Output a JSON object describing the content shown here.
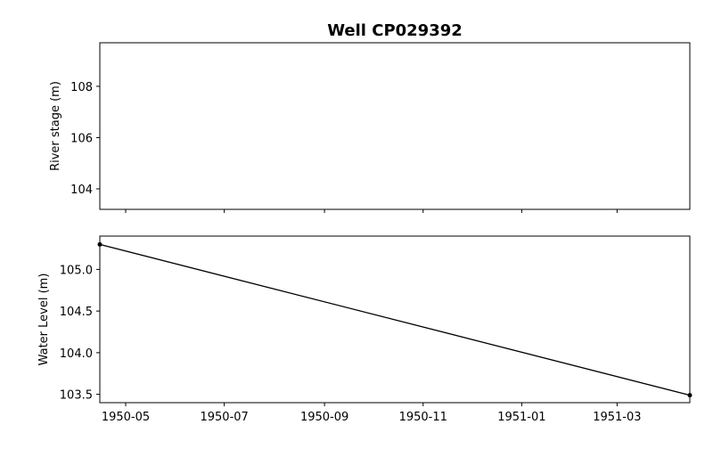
{
  "title": "Well CP029392",
  "chart_data": [
    {
      "type": "line",
      "title": "Well CP029392",
      "ylabel": "River stage (m)",
      "xlim": [
        "1950-04-15",
        "1951-04-15"
      ],
      "ylim": [
        103.2,
        109.7
      ],
      "yticks": [
        104,
        106,
        108
      ],
      "series": [
        {
          "x": [],
          "y": []
        }
      ],
      "grid": false,
      "xtick_labels_visible": false
    },
    {
      "type": "line",
      "ylabel": "Water Level (m)",
      "xlim": [
        "1950-04-15",
        "1951-04-15"
      ],
      "ylim": [
        103.4,
        105.4
      ],
      "yticks": [
        103.5,
        104.0,
        104.5,
        105.0
      ],
      "ytick_labels": [
        "103.5",
        "104.0",
        "104.5",
        "105.0"
      ],
      "xticks": [
        "1950-05-01",
        "1950-07-01",
        "1950-09-01",
        "1950-11-01",
        "1951-01-01",
        "1951-03-01"
      ],
      "xtick_labels": [
        "1950-05",
        "1950-07",
        "1950-09",
        "1950-11",
        "1951-01",
        "1951-03"
      ],
      "series": [
        {
          "x": [
            "1950-04-15",
            "1951-04-15"
          ],
          "y": [
            105.3,
            103.49
          ],
          "color": "#000000",
          "marker": "point"
        }
      ],
      "grid": false
    }
  ]
}
